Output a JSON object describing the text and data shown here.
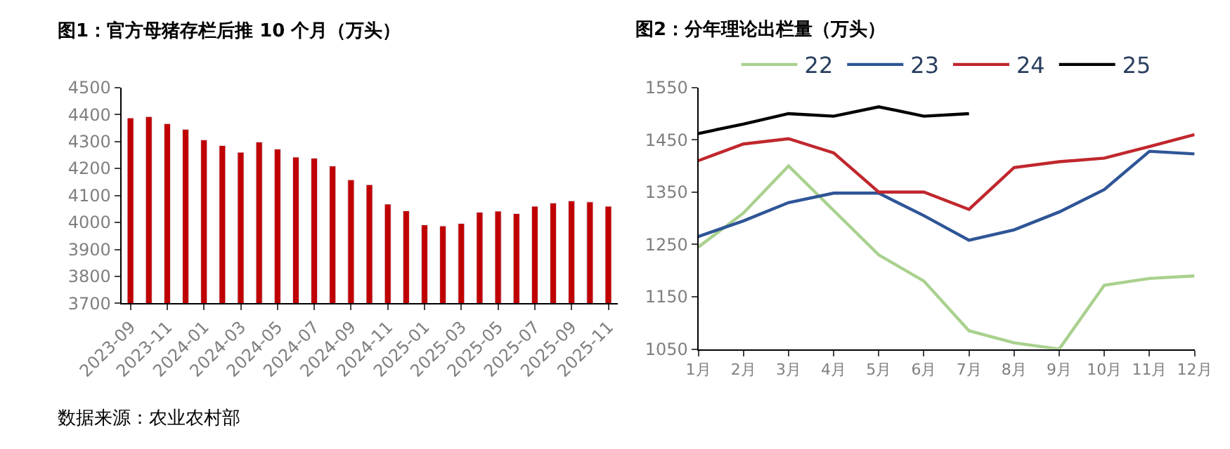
{
  "chart_data": [
    {
      "type": "bar",
      "title": "图1：官方母猪存栏后推 10 个月（万头）",
      "categories": [
        "2023-09",
        null,
        "2023-11",
        null,
        "2024-01",
        null,
        "2024-03",
        null,
        "2024-05",
        null,
        "2024-07",
        null,
        "2024-09",
        null,
        "2024-11",
        null,
        "2025-01",
        null,
        "2025-03",
        null,
        "2025-05",
        null,
        "2025-07",
        null,
        "2025-09",
        null,
        "2025-11"
      ],
      "values": [
        4387,
        4392,
        4366,
        4345,
        4306,
        4285,
        4260,
        4298,
        4272,
        4242,
        4238,
        4209,
        4158,
        4140,
        4068,
        4043,
        3991,
        3987,
        3996,
        4038,
        4042,
        4033,
        4060,
        4072,
        4080,
        4076,
        4060
      ],
      "color": "#c00000",
      "ylim": [
        3700,
        4500
      ],
      "yticks": [
        3700,
        3800,
        3900,
        4000,
        4100,
        4200,
        4300,
        4400,
        4500
      ],
      "annotations": [
        "数据来源：农业农村部"
      ]
    },
    {
      "type": "line",
      "title": "图2：分年理论出栏量（万头）",
      "categories": [
        "1月",
        "2月",
        "3月",
        "4月",
        "5月",
        "6月",
        "7月",
        "8月",
        "9月",
        "10月",
        "11月",
        "12月"
      ],
      "series": [
        {
          "name": "22",
          "color": "#a9d18e",
          "values": [
            1245,
            1310,
            1400,
            1315,
            1230,
            1180,
            1085,
            1062,
            1050,
            1172,
            1185,
            1190
          ]
        },
        {
          "name": "23",
          "color": "#2f5597",
          "values": [
            1265,
            1295,
            1330,
            1348,
            1348,
            1305,
            1258,
            1278,
            1312,
            1355,
            1428,
            1423
          ]
        },
        {
          "name": "24",
          "color": "#c0272d",
          "values": [
            1410,
            1442,
            1452,
            1425,
            1350,
            1350,
            1317,
            1397,
            1408,
            1415,
            1437,
            1460
          ]
        },
        {
          "name": "25",
          "color": "#000000",
          "values": [
            1462,
            1480,
            1500,
            1495,
            1513,
            1495,
            1500,
            null,
            null,
            null,
            null,
            null
          ]
        }
      ],
      "ylim": [
        1050,
        1550
      ],
      "yticks": [
        1050,
        1150,
        1250,
        1350,
        1450,
        1550
      ],
      "legend": "top",
      "marker": "none",
      "line_style": "solid"
    }
  ]
}
